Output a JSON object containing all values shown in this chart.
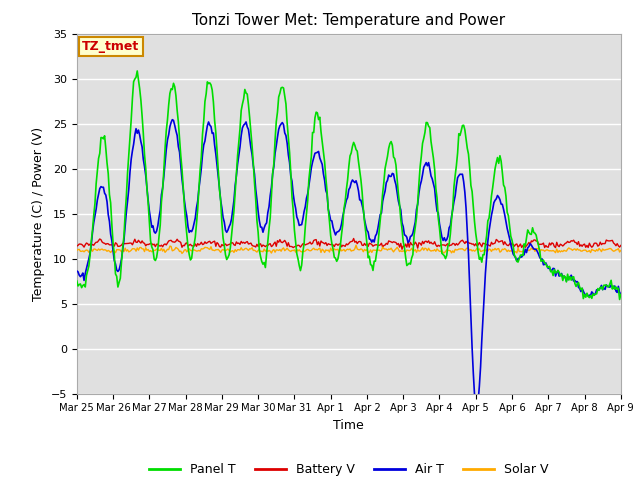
{
  "title": "Tonzi Tower Met: Temperature and Power",
  "xlabel": "Time",
  "ylabel": "Temperature (C) / Power (V)",
  "ylim": [
    -5,
    35
  ],
  "yticks": [
    -5,
    0,
    5,
    10,
    15,
    20,
    25,
    30,
    35
  ],
  "bg_color": "#e0e0e0",
  "annotation_label": "TZ_tmet",
  "annotation_bg": "#ffffcc",
  "annotation_border": "#cc8800",
  "annotation_text_color": "#cc0000",
  "legend_entries": [
    "Panel T",
    "Battery V",
    "Air T",
    "Solar V"
  ],
  "legend_colors": [
    "#00dd00",
    "#dd0000",
    "#0000dd",
    "#ffaa00"
  ],
  "line_colors": {
    "panel": "#00dd00",
    "battery": "#dd0000",
    "air": "#0000dd",
    "solar": "#ffaa00"
  }
}
